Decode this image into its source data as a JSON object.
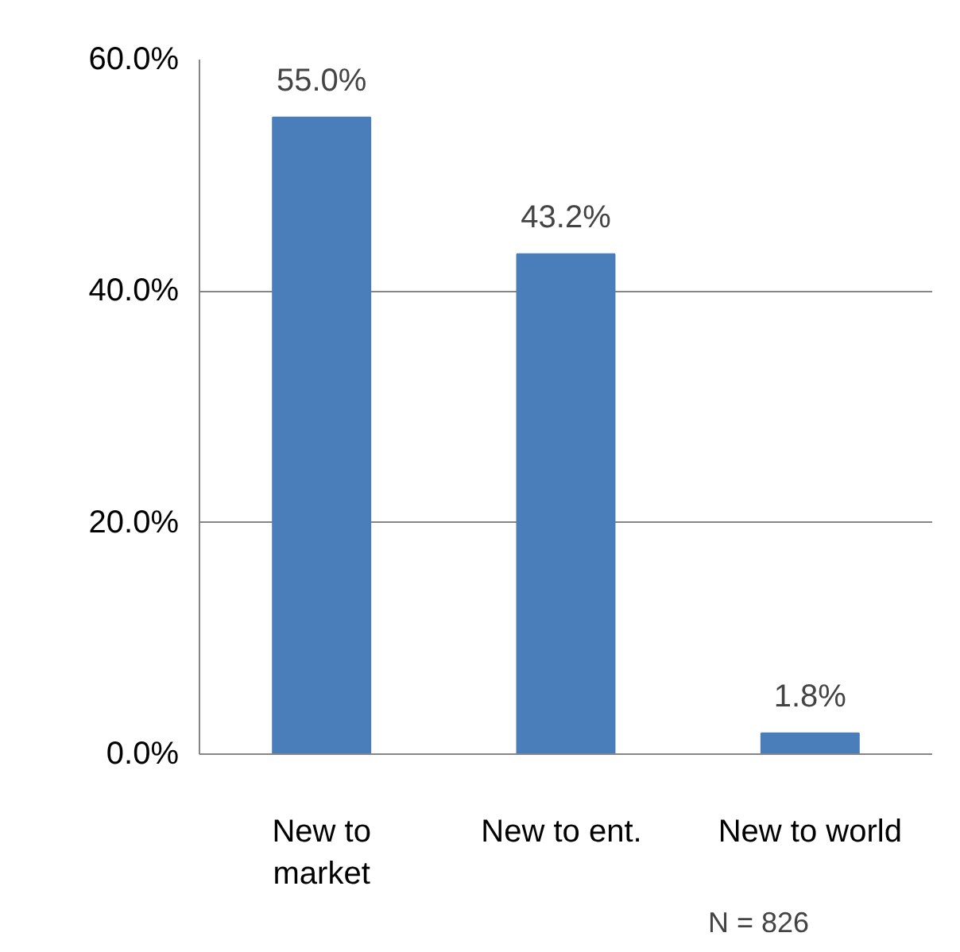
{
  "chart_data": {
    "type": "bar",
    "categories": [
      "New to market",
      "New to  ent.",
      "New to world"
    ],
    "values": [
      55.0,
      43.2,
      1.8
    ],
    "color": "#4a7ebb",
    "value_labels": [
      "55.0%",
      "43.2%",
      "1.8%"
    ],
    "ylim": [
      0,
      60
    ],
    "yticks": [
      {
        "value": 0,
        "label": "0.0%"
      },
      {
        "value": 20,
        "label": "20.0%"
      },
      {
        "value": 40,
        "label": "40.0%"
      },
      {
        "value": 60,
        "label": "60.0%"
      }
    ],
    "grid": "y",
    "annotations": [
      {
        "text": "N = 826"
      }
    ]
  }
}
